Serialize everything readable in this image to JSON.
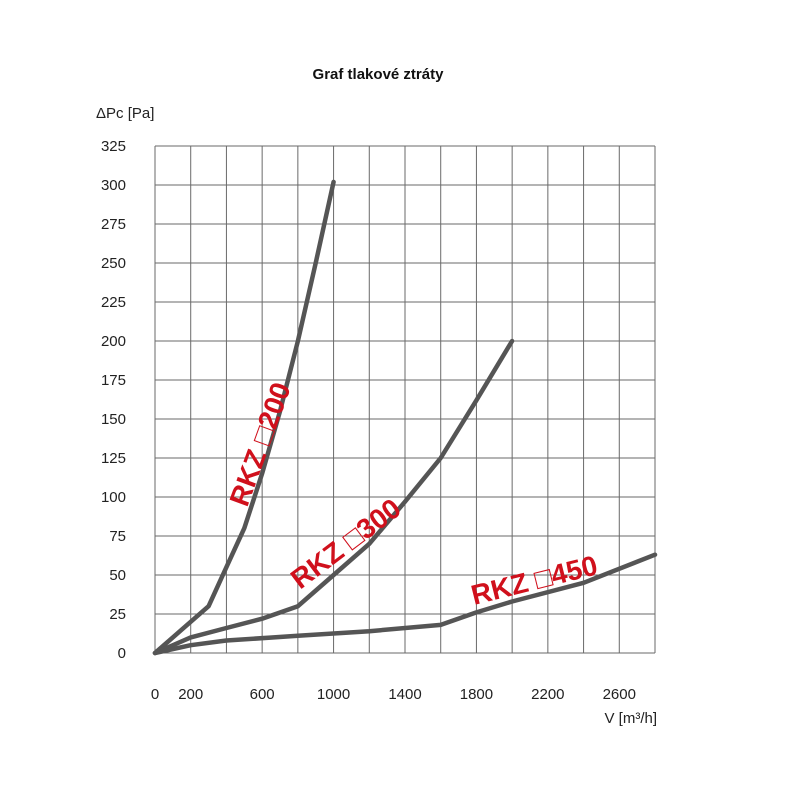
{
  "chart_data": {
    "type": "line",
    "title": "Graf tlakové ztráty",
    "ylabel": "ΔPc [Pa]",
    "xlabel": "V [m³/h]",
    "xlim": [
      0,
      2800
    ],
    "ylim": [
      0,
      325
    ],
    "grid": true,
    "y_ticks": [
      "0",
      "25",
      "50",
      "75",
      "100",
      "125",
      "150",
      "175",
      "200",
      "225",
      "250",
      "275",
      "300",
      "325"
    ],
    "x_ticks": [
      {
        "value": 0,
        "label": "0"
      },
      {
        "value": 200,
        "label": "200"
      },
      {
        "value": 600,
        "label": "600"
      },
      {
        "value": 1000,
        "label": "1000"
      },
      {
        "value": 1400,
        "label": "1400"
      },
      {
        "value": 1800,
        "label": "1800"
      },
      {
        "value": 2200,
        "label": "2200"
      },
      {
        "value": 2600,
        "label": "2600"
      }
    ],
    "series": [
      {
        "name": "RKZ □200",
        "points": [
          [
            0,
            0
          ],
          [
            150,
            15
          ],
          [
            300,
            30
          ],
          [
            400,
            55
          ],
          [
            500,
            80
          ],
          [
            600,
            115
          ],
          [
            700,
            155
          ],
          [
            800,
            200
          ],
          [
            900,
            250
          ],
          [
            1000,
            302
          ]
        ]
      },
      {
        "name": "RKZ □300",
        "points": [
          [
            0,
            0
          ],
          [
            200,
            10
          ],
          [
            400,
            16
          ],
          [
            600,
            22
          ],
          [
            800,
            30
          ],
          [
            1000,
            50
          ],
          [
            1200,
            70
          ],
          [
            1400,
            97
          ],
          [
            1600,
            125
          ],
          [
            1800,
            162
          ],
          [
            2000,
            200
          ]
        ]
      },
      {
        "name": "RKZ □450",
        "points": [
          [
            0,
            0
          ],
          [
            200,
            5
          ],
          [
            400,
            8
          ],
          [
            800,
            11
          ],
          [
            1200,
            14
          ],
          [
            1600,
            18
          ],
          [
            1800,
            26
          ],
          [
            2000,
            33
          ],
          [
            2400,
            45
          ],
          [
            2800,
            63
          ]
        ]
      }
    ]
  }
}
